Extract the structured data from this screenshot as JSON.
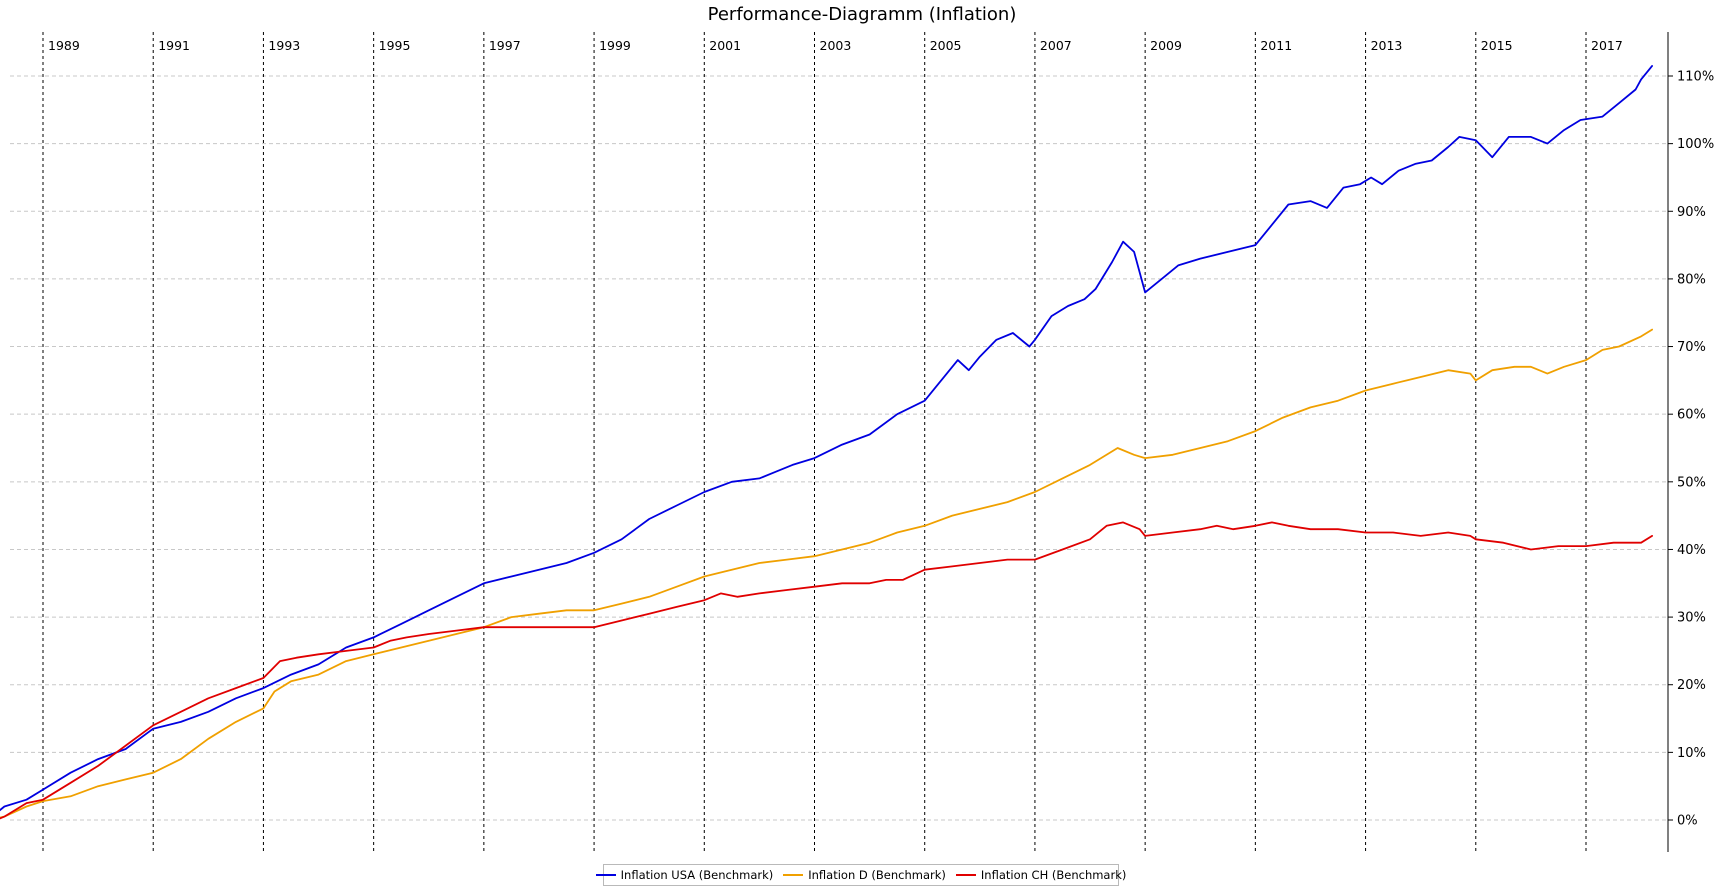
{
  "chart_data": {
    "type": "line",
    "title": "Performance-Diagramm (Inflation)",
    "xlabel": "",
    "ylabel": "",
    "x_range": [
      1988.0,
      2018.0
    ],
    "ylim": [
      -3,
      116
    ],
    "y_ticks": [
      0,
      10,
      20,
      30,
      40,
      50,
      60,
      70,
      80,
      90,
      100,
      110
    ],
    "y_tick_labels": [
      "0%",
      "10%",
      "20%",
      "30%",
      "40%",
      "50%",
      "60%",
      "70%",
      "80%",
      "90%",
      "100%",
      "110%"
    ],
    "x_year_markers": [
      1989,
      1991,
      1993,
      1995,
      1997,
      1999,
      2001,
      2003,
      2005,
      2007,
      2009,
      2011,
      2013,
      2015,
      2017
    ],
    "x_year_labels": [
      "1989",
      "1991",
      "1993",
      "1995",
      "1997",
      "1999",
      "2001",
      "2003",
      "2005",
      "2007",
      "2009",
      "2011",
      "2013",
      "2015",
      "2017"
    ],
    "grid": "horizontal dashed at y ticks; vertical dashed at year markers",
    "legend_position": "bottom-center",
    "series": [
      {
        "name": "Inflation USA (Benchmark)",
        "color": "#0000e0",
        "points": [
          [
            1988.0,
            0
          ],
          [
            1988.3,
            2
          ],
          [
            1988.7,
            3
          ],
          [
            1989.0,
            4.5
          ],
          [
            1989.5,
            7
          ],
          [
            1990.0,
            9
          ],
          [
            1990.5,
            10.5
          ],
          [
            1991.0,
            13.5
          ],
          [
            1991.5,
            14.5
          ],
          [
            1992.0,
            16
          ],
          [
            1992.5,
            18
          ],
          [
            1993.0,
            19.5
          ],
          [
            1993.5,
            21.5
          ],
          [
            1994.0,
            23
          ],
          [
            1994.5,
            25.5
          ],
          [
            1995.0,
            27
          ],
          [
            1995.5,
            29
          ],
          [
            1996.0,
            31
          ],
          [
            1996.5,
            33
          ],
          [
            1997.0,
            35
          ],
          [
            1997.5,
            36
          ],
          [
            1998.0,
            37
          ],
          [
            1998.5,
            38
          ],
          [
            1999.0,
            39.5
          ],
          [
            1999.5,
            41.5
          ],
          [
            2000.0,
            44.5
          ],
          [
            2000.5,
            46.5
          ],
          [
            2001.0,
            48.5
          ],
          [
            2001.5,
            50
          ],
          [
            2002.0,
            50.5
          ],
          [
            2002.3,
            51.5
          ],
          [
            2002.6,
            52.5
          ],
          [
            2003.0,
            53.5
          ],
          [
            2003.5,
            55.5
          ],
          [
            2004.0,
            57
          ],
          [
            2004.5,
            60
          ],
          [
            2005.0,
            62
          ],
          [
            2005.3,
            65
          ],
          [
            2005.6,
            68
          ],
          [
            2005.8,
            66.5
          ],
          [
            2006.0,
            68.5
          ],
          [
            2006.3,
            71
          ],
          [
            2006.6,
            72
          ],
          [
            2006.9,
            70
          ],
          [
            2007.0,
            71
          ],
          [
            2007.3,
            74.5
          ],
          [
            2007.6,
            76
          ],
          [
            2007.9,
            77
          ],
          [
            2008.1,
            78.5
          ],
          [
            2008.4,
            82.5
          ],
          [
            2008.6,
            85.5
          ],
          [
            2008.8,
            84
          ],
          [
            2009.0,
            78
          ],
          [
            2009.3,
            80
          ],
          [
            2009.6,
            82
          ],
          [
            2010.0,
            83
          ],
          [
            2010.5,
            84
          ],
          [
            2011.0,
            85
          ],
          [
            2011.3,
            88
          ],
          [
            2011.6,
            91
          ],
          [
            2012.0,
            91.5
          ],
          [
            2012.3,
            90.5
          ],
          [
            2012.6,
            93.5
          ],
          [
            2012.9,
            94
          ],
          [
            2013.1,
            95
          ],
          [
            2013.3,
            94
          ],
          [
            2013.6,
            96
          ],
          [
            2013.9,
            97
          ],
          [
            2014.2,
            97.5
          ],
          [
            2014.5,
            99.5
          ],
          [
            2014.7,
            101
          ],
          [
            2015.0,
            100.5
          ],
          [
            2015.3,
            98
          ],
          [
            2015.6,
            101
          ],
          [
            2016.0,
            101
          ],
          [
            2016.3,
            100
          ],
          [
            2016.6,
            102
          ],
          [
            2016.9,
            103.5
          ],
          [
            2017.3,
            104
          ],
          [
            2017.6,
            106
          ],
          [
            2017.9,
            108
          ],
          [
            2018.0,
            109.5
          ],
          [
            2018.2,
            111.5
          ]
        ]
      },
      {
        "name": "Inflation D (Benchmark)",
        "color": "#f0a000",
        "points": [
          [
            1988.0,
            0
          ],
          [
            1988.3,
            0.5
          ],
          [
            1988.7,
            2
          ],
          [
            1989.0,
            2.8
          ],
          [
            1989.5,
            3.5
          ],
          [
            1990.0,
            5
          ],
          [
            1990.5,
            6
          ],
          [
            1991.0,
            7
          ],
          [
            1991.5,
            9
          ],
          [
            1992.0,
            12
          ],
          [
            1992.5,
            14.5
          ],
          [
            1993.0,
            16.5
          ],
          [
            1993.2,
            19
          ],
          [
            1993.5,
            20.5
          ],
          [
            1994.0,
            21.5
          ],
          [
            1994.5,
            23.5
          ],
          [
            1995.0,
            24.5
          ],
          [
            1995.5,
            25.5
          ],
          [
            1996.0,
            26.5
          ],
          [
            1996.5,
            27.5
          ],
          [
            1997.0,
            28.5
          ],
          [
            1997.5,
            30
          ],
          [
            1998.0,
            30.5
          ],
          [
            1998.5,
            31
          ],
          [
            1999.0,
            31
          ],
          [
            1999.5,
            32
          ],
          [
            2000.0,
            33
          ],
          [
            2000.5,
            34.5
          ],
          [
            2001.0,
            36
          ],
          [
            2001.5,
            37
          ],
          [
            2002.0,
            38
          ],
          [
            2002.5,
            38.5
          ],
          [
            2003.0,
            39
          ],
          [
            2003.5,
            40
          ],
          [
            2004.0,
            41
          ],
          [
            2004.5,
            42.5
          ],
          [
            2005.0,
            43.5
          ],
          [
            2005.5,
            45
          ],
          [
            2006.0,
            46
          ],
          [
            2006.5,
            47
          ],
          [
            2007.0,
            48.5
          ],
          [
            2007.5,
            50.5
          ],
          [
            2008.0,
            52.5
          ],
          [
            2008.5,
            55
          ],
          [
            2008.8,
            54
          ],
          [
            2009.0,
            53.5
          ],
          [
            2009.5,
            54
          ],
          [
            2010.0,
            55
          ],
          [
            2010.5,
            56
          ],
          [
            2011.0,
            57.5
          ],
          [
            2011.5,
            59.5
          ],
          [
            2012.0,
            61
          ],
          [
            2012.5,
            62
          ],
          [
            2013.0,
            63.5
          ],
          [
            2013.5,
            64.5
          ],
          [
            2014.0,
            65.5
          ],
          [
            2014.5,
            66.5
          ],
          [
            2014.9,
            66
          ],
          [
            2015.0,
            65
          ],
          [
            2015.3,
            66.5
          ],
          [
            2015.7,
            67
          ],
          [
            2016.0,
            67
          ],
          [
            2016.3,
            66
          ],
          [
            2016.6,
            67
          ],
          [
            2017.0,
            68
          ],
          [
            2017.3,
            69.5
          ],
          [
            2017.6,
            70
          ],
          [
            2018.0,
            71.5
          ],
          [
            2018.2,
            72.5
          ]
        ]
      },
      {
        "name": "Inflation CH (Benchmark)",
        "color": "#e00000",
        "points": [
          [
            1988.0,
            -0.5
          ],
          [
            1988.3,
            0.5
          ],
          [
            1988.7,
            2.5
          ],
          [
            1989.0,
            3
          ],
          [
            1989.5,
            5.5
          ],
          [
            1990.0,
            8
          ],
          [
            1990.5,
            11
          ],
          [
            1991.0,
            14
          ],
          [
            1991.5,
            16
          ],
          [
            1992.0,
            18
          ],
          [
            1992.5,
            19.5
          ],
          [
            1993.0,
            21
          ],
          [
            1993.3,
            23.5
          ],
          [
            1993.6,
            24
          ],
          [
            1994.0,
            24.5
          ],
          [
            1994.5,
            25
          ],
          [
            1995.0,
            25.5
          ],
          [
            1995.3,
            26.5
          ],
          [
            1995.6,
            27
          ],
          [
            1996.0,
            27.5
          ],
          [
            1996.5,
            28
          ],
          [
            1997.0,
            28.5
          ],
          [
            1997.5,
            28.5
          ],
          [
            1998.0,
            28.5
          ],
          [
            1998.5,
            28.5
          ],
          [
            1999.0,
            28.5
          ],
          [
            1999.5,
            29.5
          ],
          [
            2000.0,
            30.5
          ],
          [
            2000.5,
            31.5
          ],
          [
            2001.0,
            32.5
          ],
          [
            2001.3,
            33.5
          ],
          [
            2001.6,
            33
          ],
          [
            2002.0,
            33.5
          ],
          [
            2002.5,
            34
          ],
          [
            2003.0,
            34.5
          ],
          [
            2003.5,
            35
          ],
          [
            2004.0,
            35
          ],
          [
            2004.3,
            35.5
          ],
          [
            2004.6,
            35.5
          ],
          [
            2005.0,
            37
          ],
          [
            2005.5,
            37.5
          ],
          [
            2006.0,
            38
          ],
          [
            2006.5,
            38.5
          ],
          [
            2007.0,
            38.5
          ],
          [
            2007.5,
            40
          ],
          [
            2008.0,
            41.5
          ],
          [
            2008.3,
            43.5
          ],
          [
            2008.6,
            44
          ],
          [
            2008.9,
            43
          ],
          [
            2009.0,
            42
          ],
          [
            2009.5,
            42.5
          ],
          [
            2010.0,
            43
          ],
          [
            2010.3,
            43.5
          ],
          [
            2010.6,
            43
          ],
          [
            2011.0,
            43.5
          ],
          [
            2011.3,
            44
          ],
          [
            2011.6,
            43.5
          ],
          [
            2012.0,
            43
          ],
          [
            2012.5,
            43
          ],
          [
            2013.0,
            42.5
          ],
          [
            2013.5,
            42.5
          ],
          [
            2014.0,
            42
          ],
          [
            2014.5,
            42.5
          ],
          [
            2014.9,
            42
          ],
          [
            2015.0,
            41.5
          ],
          [
            2015.5,
            41
          ],
          [
            2016.0,
            40
          ],
          [
            2016.5,
            40.5
          ],
          [
            2017.0,
            40.5
          ],
          [
            2017.5,
            41
          ],
          [
            2018.0,
            41
          ],
          [
            2018.2,
            42
          ]
        ]
      }
    ]
  }
}
